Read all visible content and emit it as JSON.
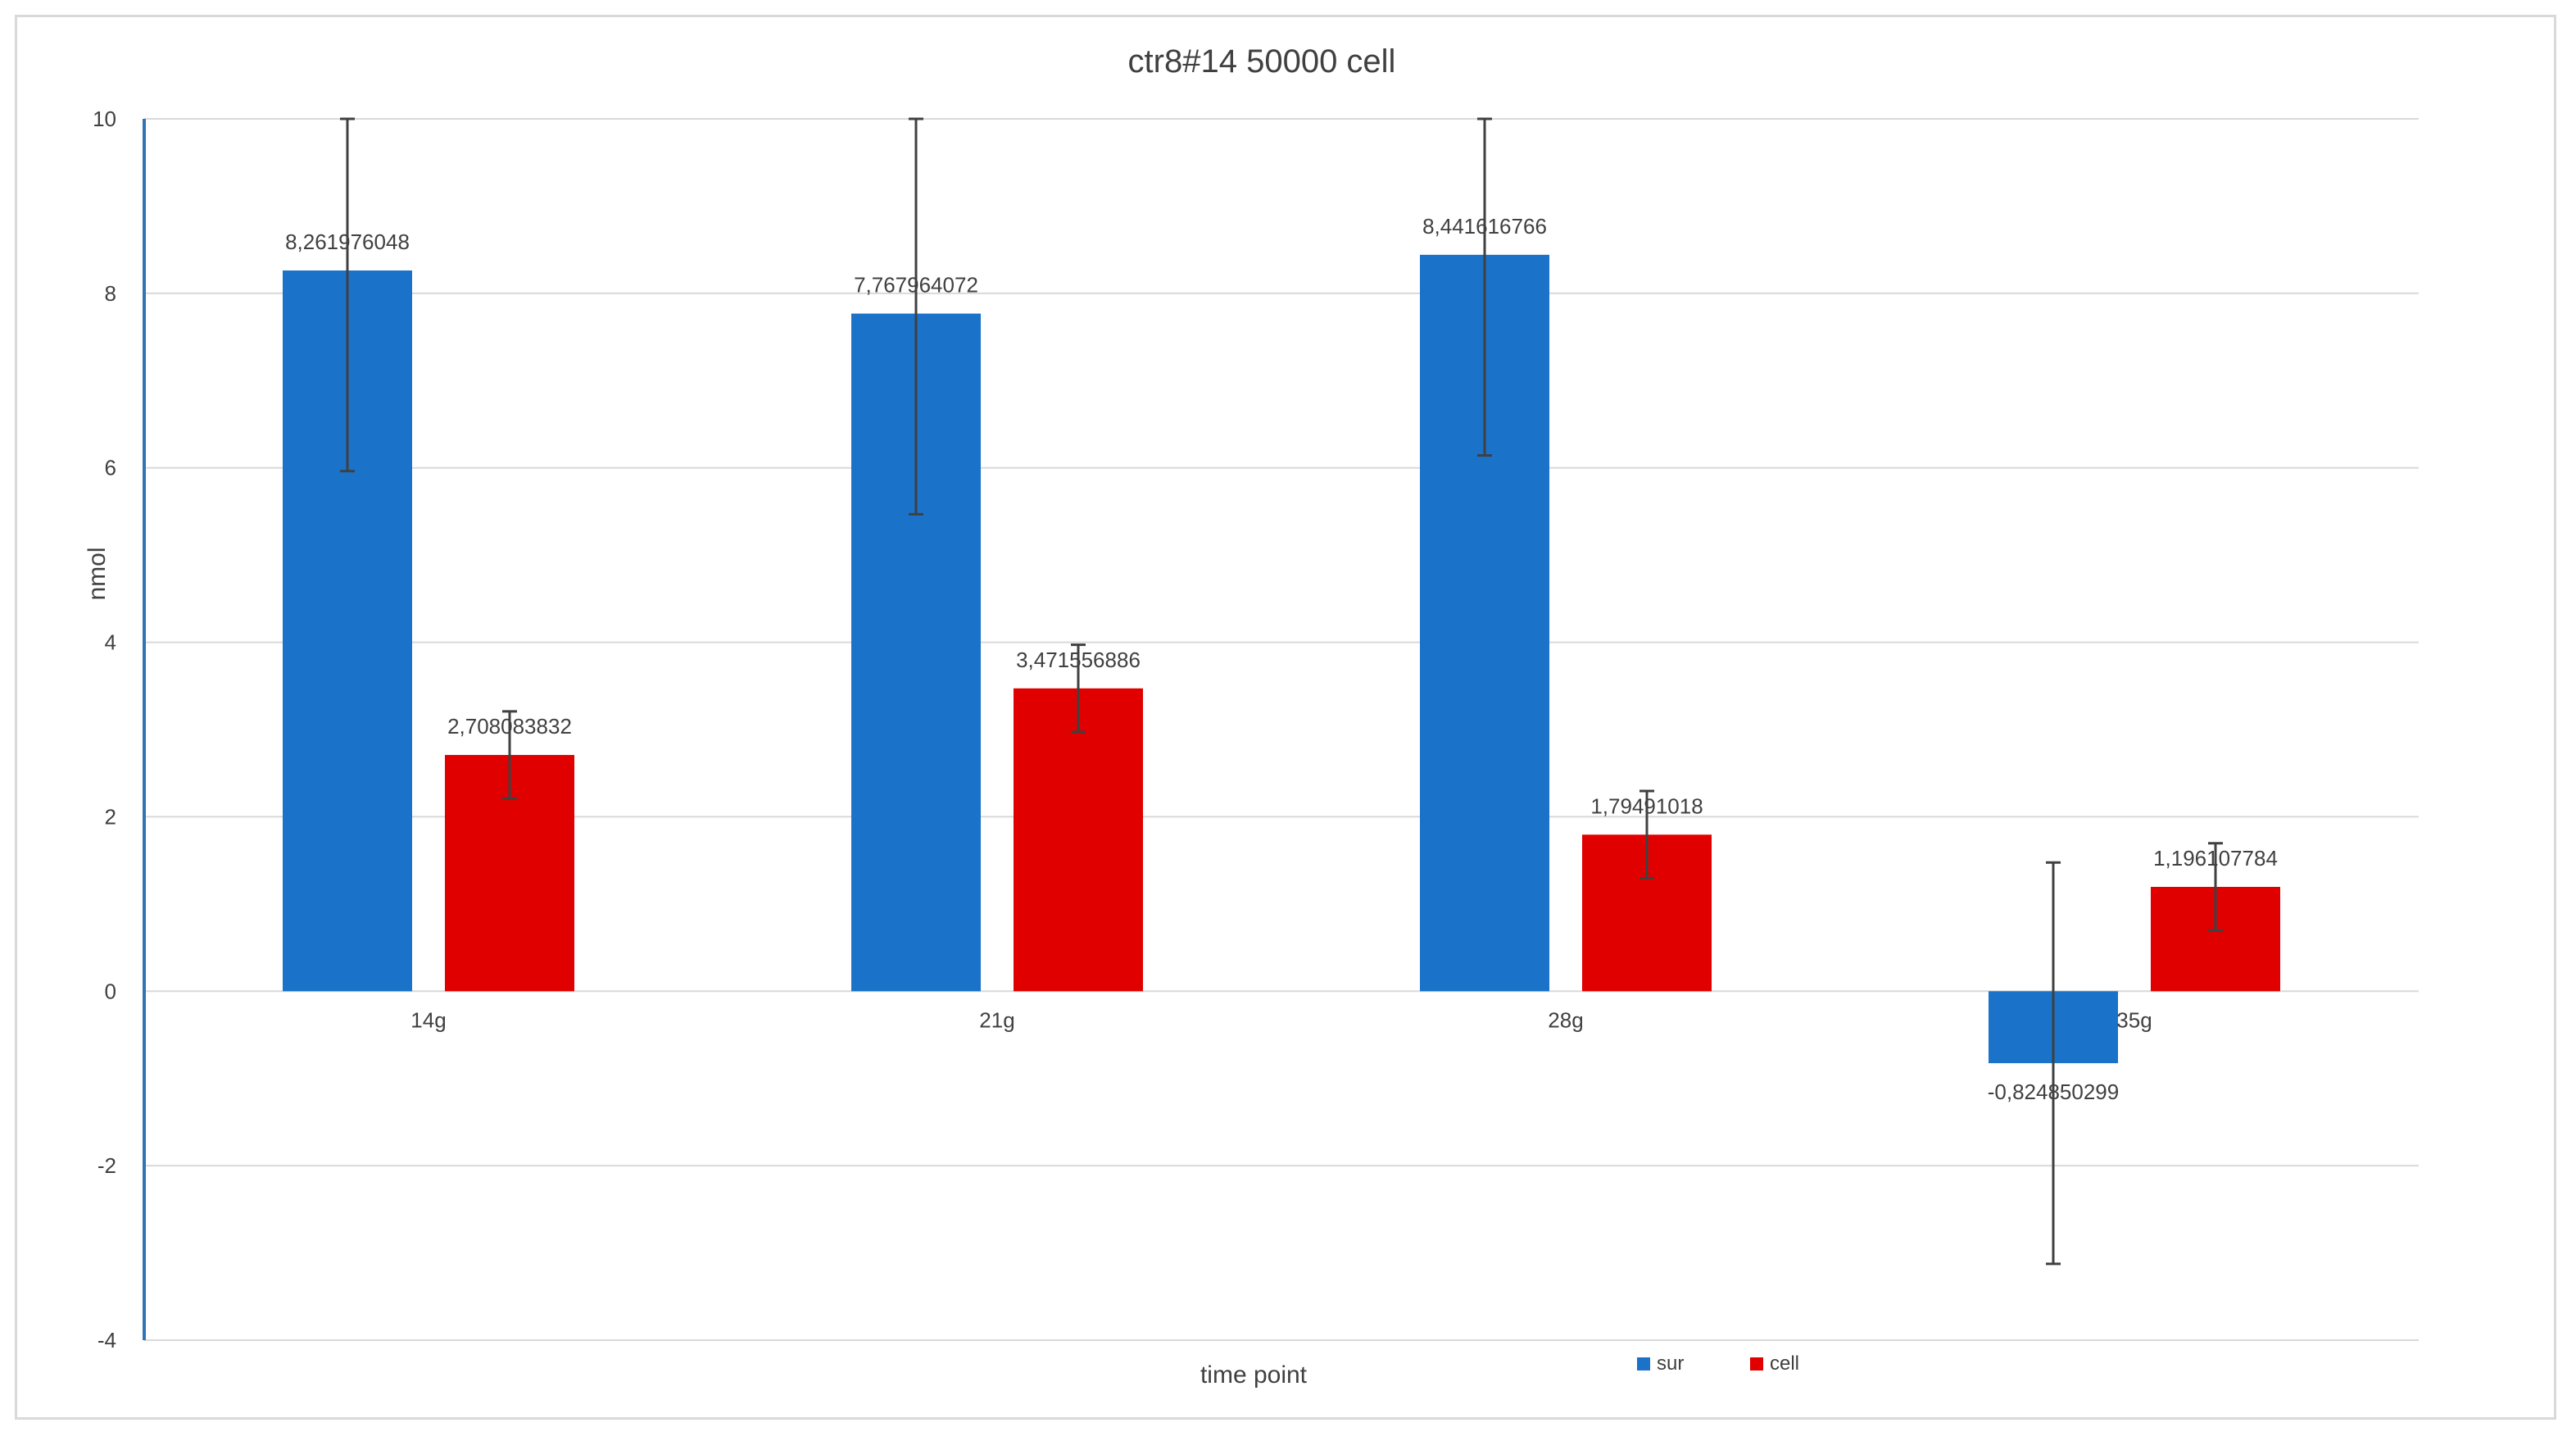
{
  "chart_data": {
    "type": "bar",
    "title": "ctr8#14 50000 cell",
    "xlabel": "time point",
    "ylabel": "nmol",
    "categories": [
      "14g",
      "21g",
      "28g",
      "35g"
    ],
    "ylim": [
      -4,
      10
    ],
    "yticks": [
      10,
      8,
      6,
      4,
      2,
      0,
      -2,
      -4
    ],
    "grid": true,
    "legend_position": "bottom",
    "series": [
      {
        "name": "sur",
        "color": "#1a72c9",
        "values": [
          8.261976048,
          7.767964072,
          8.441616766,
          -0.824850299
        ],
        "labels": [
          "8,261976048",
          "7,767964072",
          "8,441616766",
          "-0,824850299"
        ],
        "error": [
          2.3,
          2.3,
          2.3,
          2.3
        ]
      },
      {
        "name": "cell",
        "color": "#e00000",
        "values": [
          2.708083832,
          3.471556886,
          1.79491018,
          1.196107784
        ],
        "labels": [
          "2,708083832",
          "3,471556886",
          "1,79491018",
          "1,196107784"
        ],
        "error": [
          0.5,
          0.5,
          0.5,
          0.5
        ]
      }
    ]
  }
}
